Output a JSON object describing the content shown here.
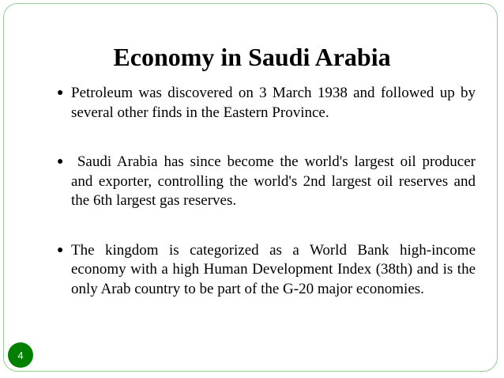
{
  "slide": {
    "title": "Economy in Saudi Arabia",
    "bullets": [
      "Petroleum was discovered on 3 March 1938 and followed up by several other finds in the Eastern Province.",
      " Saudi Arabia has since become the world's largest oil producer and exporter, controlling the world's 2nd largest oil reserves and the 6th largest gas reserves.",
      "The kingdom is categorized as a World Bank high-income economy with a high Human Development Index (38th)  and is the only Arab country to be part of the G-20 major economies."
    ],
    "bullet_icon": "filled-circle-bullet",
    "page_number": "4",
    "colors": {
      "border": "#93cf93",
      "page_badge": "#008000"
    }
  }
}
